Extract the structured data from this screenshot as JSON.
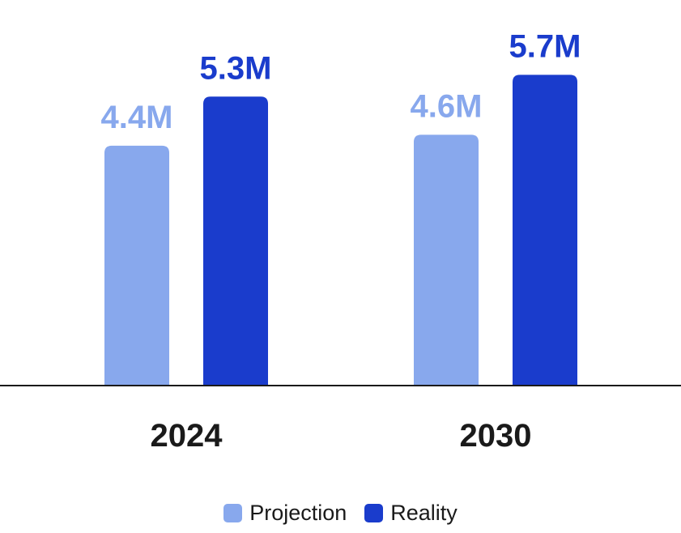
{
  "chart_data": {
    "type": "bar",
    "categories": [
      "2024",
      "2030"
    ],
    "series": [
      {
        "name": "Projection",
        "values": [
          4.4,
          4.6
        ],
        "labels": [
          "4.4M",
          "4.6M"
        ],
        "color": "#88a8ed"
      },
      {
        "name": "Reality",
        "values": [
          5.3,
          5.7
        ],
        "labels": [
          "5.3M",
          "5.7M"
        ],
        "color": "#1a3ccc"
      }
    ],
    "title": "",
    "xlabel": "",
    "ylabel": "",
    "ylim": [
      0,
      6
    ],
    "grid": false,
    "legend_position": "bottom-center"
  }
}
